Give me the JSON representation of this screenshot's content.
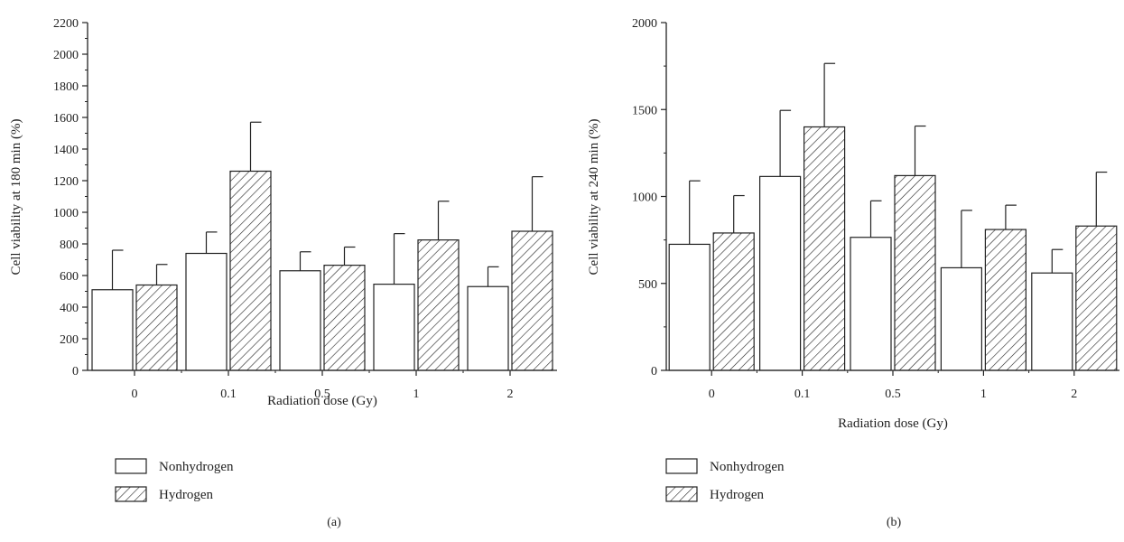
{
  "chart_data": [
    {
      "type": "bar",
      "panel_label": "(a)",
      "xlabel": "Radiation dose (Gy)",
      "ylabel": "Cell viability at 180 min (%)",
      "ylim": [
        0,
        2200
      ],
      "yticks": [
        0,
        200,
        400,
        600,
        800,
        1000,
        1200,
        1400,
        1600,
        1800,
        2000,
        2200
      ],
      "categories": [
        "0",
        "0.1",
        "0.5",
        "1",
        "2"
      ],
      "series": [
        {
          "name": "Nonhydrogen",
          "pattern": "none",
          "values": [
            510,
            740,
            630,
            545,
            530
          ],
          "error": [
            250,
            135,
            120,
            320,
            125
          ]
        },
        {
          "name": "Hydrogen",
          "pattern": "hatch",
          "values": [
            540,
            1260,
            665,
            825,
            880
          ],
          "error": [
            130,
            310,
            115,
            245,
            345
          ]
        }
      ],
      "legend": "bottom-left"
    },
    {
      "type": "bar",
      "panel_label": "(b)",
      "xlabel": "Radiation dose (Gy)",
      "ylabel": "Cell viability at 240 min (%)",
      "ylim": [
        0,
        2000
      ],
      "yticks": [
        0,
        500,
        1000,
        1500,
        2000
      ],
      "categories": [
        "0",
        "0.1",
        "0.5",
        "1",
        "2"
      ],
      "series": [
        {
          "name": "Nonhydrogen",
          "pattern": "none",
          "values": [
            725,
            1115,
            765,
            590,
            560
          ],
          "error": [
            365,
            380,
            210,
            330,
            135
          ]
        },
        {
          "name": "Hydrogen",
          "pattern": "hatch",
          "values": [
            790,
            1400,
            1120,
            810,
            830
          ],
          "error": [
            215,
            365,
            285,
            140,
            310
          ]
        }
      ],
      "legend": "bottom-left"
    }
  ]
}
